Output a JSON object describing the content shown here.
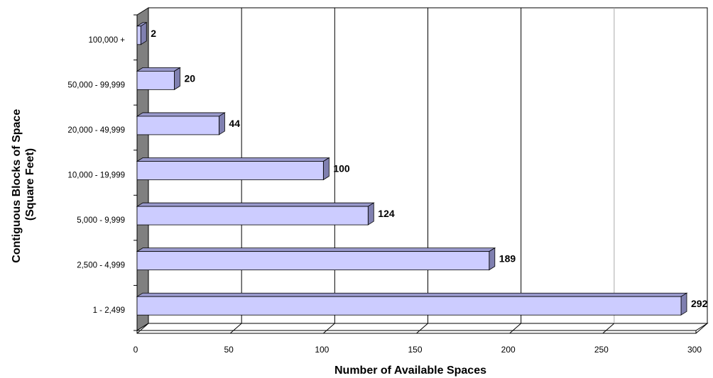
{
  "chart_data": {
    "type": "bar",
    "orientation": "horizontal",
    "categories": [
      "1 - 2,499",
      "2,500 - 4,999",
      "5,000 - 9,999",
      "10,000 - 19,999",
      "20,000 - 49,999",
      "50,000 - 99,999",
      "100,000 +"
    ],
    "values": [
      292,
      189,
      124,
      100,
      44,
      20,
      2
    ],
    "data_labels": [
      "292",
      "189",
      "124",
      "100",
      "44",
      "20",
      "2"
    ],
    "xlabel": "Number of Available Spaces",
    "ylabel_lines": [
      "Contiguous Blocks of Space",
      "(Square Feet)"
    ],
    "xlim": [
      0,
      300
    ],
    "xticks": [
      0,
      50,
      100,
      150,
      200,
      250,
      300
    ],
    "xtick_labels": [
      "0",
      "50",
      "100",
      "150",
      "200",
      "250",
      "300"
    ],
    "grid": true,
    "style": "3d",
    "colors": {
      "bar_front": "#ccccff",
      "bar_top": "#9999cc",
      "bar_side": "#8080b0",
      "wall": "#808080",
      "floor": "#ffffff",
      "gridline": "#000000"
    }
  }
}
